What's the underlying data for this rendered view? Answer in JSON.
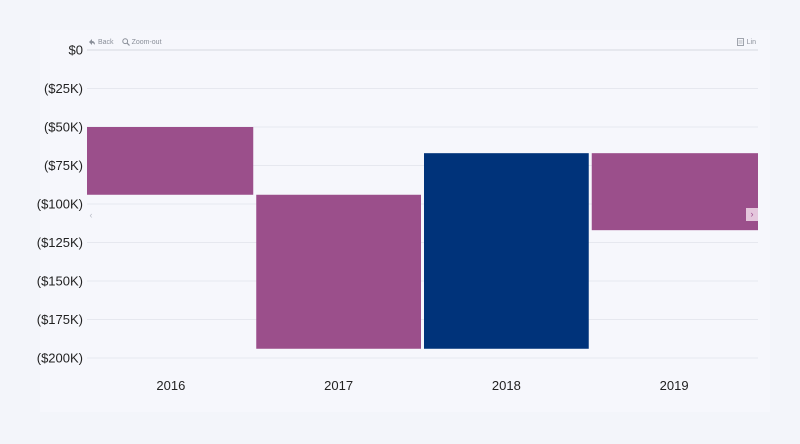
{
  "toolbar": {
    "back_label": "Back",
    "zoom_out_label": "Zoom-out",
    "lin_label": "Lin",
    "back_icon": "back-arrow-icon",
    "zoom_icon": "magnifier-icon",
    "lin_icon": "scale-toggle-icon"
  },
  "navigation": {
    "prev_glyph": "‹",
    "next_glyph": "›"
  },
  "colors": {
    "negative": "#9b4f8b",
    "total": "#00337a",
    "gridline": "#e6e8ef",
    "baseline": "#d7d9e0",
    "tick_text": "#222222"
  },
  "chart_data": {
    "type": "waterfall",
    "categories": [
      "2016",
      "2017",
      "2018",
      "2019"
    ],
    "bars": [
      {
        "category": "2016",
        "start": -50000,
        "end": -94000,
        "kind": "decrease"
      },
      {
        "category": "2017",
        "start": -94000,
        "end": -194000,
        "kind": "decrease"
      },
      {
        "category": "2018",
        "start": -67000,
        "end": -194000,
        "kind": "total"
      },
      {
        "category": "2019",
        "start": -67000,
        "end": -117000,
        "kind": "decrease"
      }
    ],
    "ylim": [
      -200000,
      0
    ],
    "y_ticks": [
      {
        "value": 0,
        "label": "$0"
      },
      {
        "value": -25000,
        "label": "($25K)"
      },
      {
        "value": -50000,
        "label": "($50K)"
      },
      {
        "value": -75000,
        "label": "($75K)"
      },
      {
        "value": -100000,
        "label": "($100K)"
      },
      {
        "value": -125000,
        "label": "($125K)"
      },
      {
        "value": -150000,
        "label": "($150K)"
      },
      {
        "value": -175000,
        "label": "($175K)"
      },
      {
        "value": -200000,
        "label": "($200K)"
      }
    ],
    "grid": true,
    "title": "",
    "xlabel": "",
    "ylabel": ""
  }
}
